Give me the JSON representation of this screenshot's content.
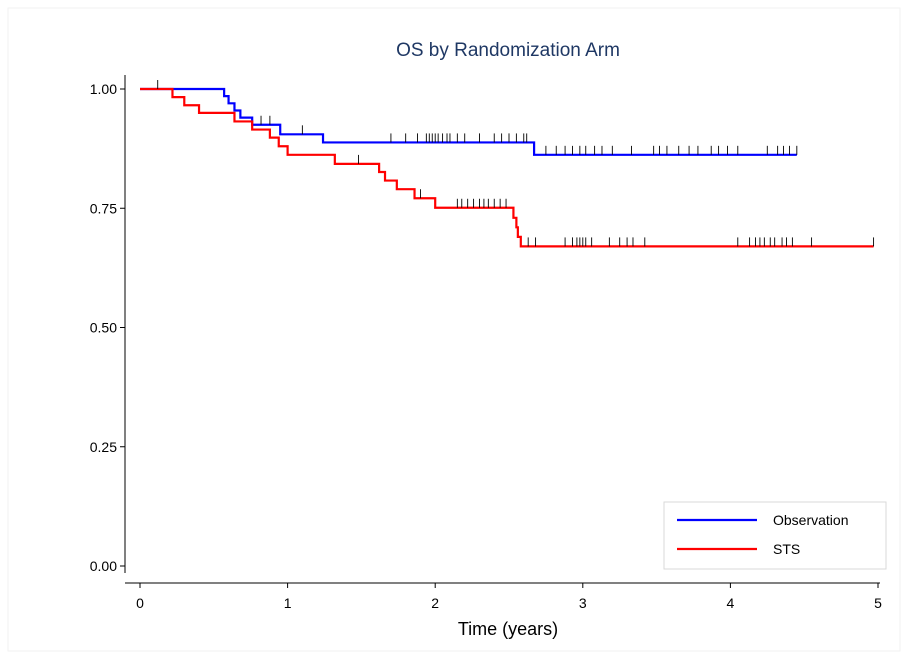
{
  "chart_data": {
    "type": "line",
    "subtype": "kaplan-meier-step",
    "title": "OS by Randomization Arm",
    "xlabel": "Time (years)",
    "ylabel": "",
    "xlim": [
      -0.1,
      5.05
    ],
    "ylim": [
      -0.02,
      1.05
    ],
    "x_ticks": [
      "0",
      "1",
      "2",
      "3",
      "4",
      "5"
    ],
    "y_ticks": [
      "0.00",
      "0.25",
      "0.50",
      "0.75",
      "1.00"
    ],
    "grid": false,
    "legend_position": "bottom-right",
    "series": [
      {
        "name": "Observation",
        "color": "#0000ff",
        "steps": [
          [
            0,
            1.0
          ],
          [
            0.57,
            0.985
          ],
          [
            0.6,
            0.97
          ],
          [
            0.64,
            0.955
          ],
          [
            0.68,
            0.94
          ],
          [
            0.76,
            0.925
          ],
          [
            0.95,
            0.905
          ],
          [
            1.24,
            0.888
          ],
          [
            2.67,
            0.862
          ]
        ],
        "end_x": 4.45,
        "censor_x": [
          0.82,
          0.88,
          1.1,
          1.7,
          1.8,
          1.88,
          1.94,
          1.96,
          1.98,
          2.0,
          2.02,
          2.05,
          2.08,
          2.1,
          2.15,
          2.2,
          2.3,
          2.4,
          2.45,
          2.5,
          2.55,
          2.6,
          2.62,
          2.75,
          2.82,
          2.88,
          2.93,
          2.98,
          3.02,
          3.08,
          3.13,
          3.2,
          3.33,
          3.48,
          3.52,
          3.57,
          3.65,
          3.72,
          3.78,
          3.87,
          3.92,
          3.98,
          4.05,
          4.25,
          4.32,
          4.36,
          4.4,
          4.45
        ]
      },
      {
        "name": "STS",
        "color": "#ff0000",
        "steps": [
          [
            0,
            1.0
          ],
          [
            0.22,
            0.983
          ],
          [
            0.3,
            0.966
          ],
          [
            0.4,
            0.95
          ],
          [
            0.64,
            0.932
          ],
          [
            0.76,
            0.915
          ],
          [
            0.88,
            0.898
          ],
          [
            0.94,
            0.88
          ],
          [
            1.0,
            0.862
          ],
          [
            1.32,
            0.843
          ],
          [
            1.62,
            0.826
          ],
          [
            1.66,
            0.808
          ],
          [
            1.74,
            0.79
          ],
          [
            1.86,
            0.771
          ],
          [
            2.0,
            0.751
          ],
          [
            2.53,
            0.73
          ],
          [
            2.55,
            0.71
          ],
          [
            2.56,
            0.69
          ],
          [
            2.58,
            0.67
          ]
        ],
        "end_x": 4.97,
        "censor_x": [
          0.12,
          1.48,
          1.9,
          2.15,
          2.18,
          2.22,
          2.26,
          2.3,
          2.33,
          2.36,
          2.4,
          2.44,
          2.48,
          2.63,
          2.68,
          2.88,
          2.93,
          2.96,
          2.98,
          3.0,
          3.02,
          3.06,
          3.18,
          3.25,
          3.3,
          3.34,
          3.42,
          4.05,
          4.13,
          4.17,
          4.2,
          4.23,
          4.27,
          4.3,
          4.35,
          4.38,
          4.42,
          4.55,
          4.97
        ]
      }
    ]
  }
}
